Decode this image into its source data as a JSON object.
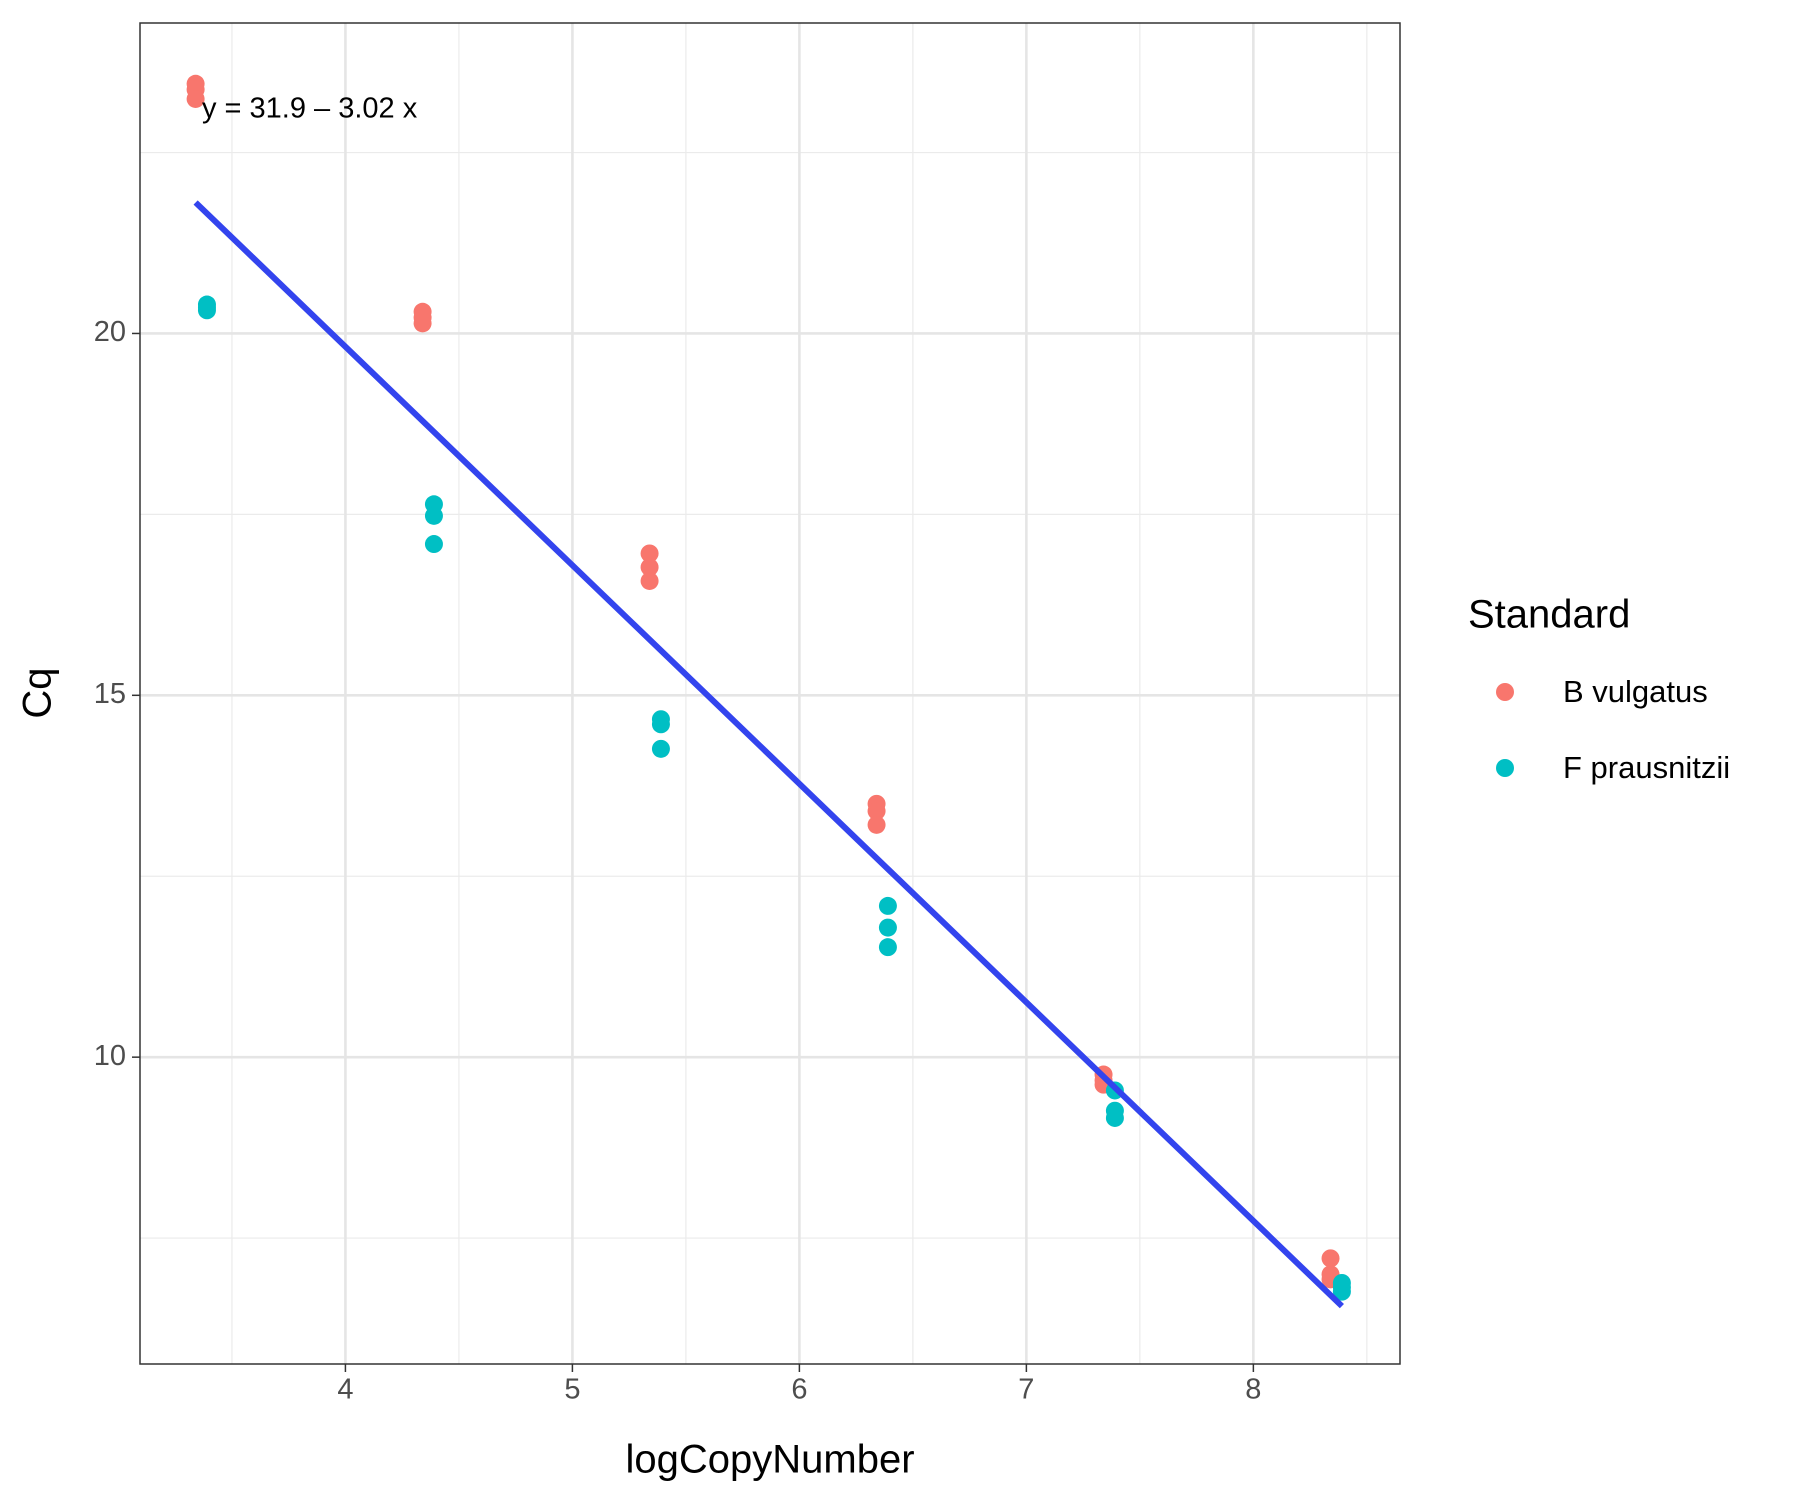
{
  "chart_data": {
    "type": "scatter",
    "x_label": "logCopyNumber",
    "y_label": "Cq",
    "legend_title": "Standard",
    "annotation": "y = 31.9 – 3.02 x",
    "xlim": [
      3.095,
      8.646
    ],
    "ylim": [
      5.76,
      24.29
    ],
    "xticks": [
      4,
      5,
      6,
      7,
      8
    ],
    "yticks": [
      10,
      15,
      20
    ],
    "xminor": [
      3.5,
      4.5,
      5.5,
      6.5,
      7.5,
      8.5
    ],
    "yminor": [
      7.5,
      12.5,
      17.5,
      22.5
    ],
    "grid": true,
    "legend": "right",
    "series": [
      {
        "name": "B vulgatus",
        "color": "#f8766d",
        "x": [
          3.34,
          3.34,
          3.34,
          4.34,
          4.34,
          4.34,
          5.34,
          5.34,
          5.34,
          6.34,
          6.34,
          6.34,
          7.34,
          7.34,
          7.34,
          8.34,
          8.34,
          8.34
        ],
        "values": [
          23.45,
          23.37,
          23.24,
          20.3,
          20.22,
          20.14,
          16.96,
          16.77,
          16.58,
          13.5,
          13.4,
          13.21,
          9.76,
          9.68,
          9.62,
          7.22,
          7.0,
          6.93
        ]
      },
      {
        "name": "F prausnitzii",
        "color": "#00bfc4",
        "x": [
          3.39,
          3.39,
          3.39,
          4.39,
          4.39,
          4.39,
          5.39,
          5.39,
          5.39,
          6.39,
          6.39,
          6.39,
          7.39,
          7.39,
          7.39,
          8.39,
          8.39,
          8.39
        ],
        "values": [
          20.4,
          20.36,
          20.32,
          17.64,
          17.48,
          17.09,
          14.67,
          14.6,
          14.26,
          12.09,
          11.79,
          11.52,
          9.54,
          9.26,
          9.16,
          6.88,
          6.82,
          6.76
        ]
      }
    ],
    "fit_line": {
      "color": "#3344ee",
      "x": [
        3.34,
        8.39
      ],
      "values": [
        21.81,
        6.56
      ]
    }
  }
}
